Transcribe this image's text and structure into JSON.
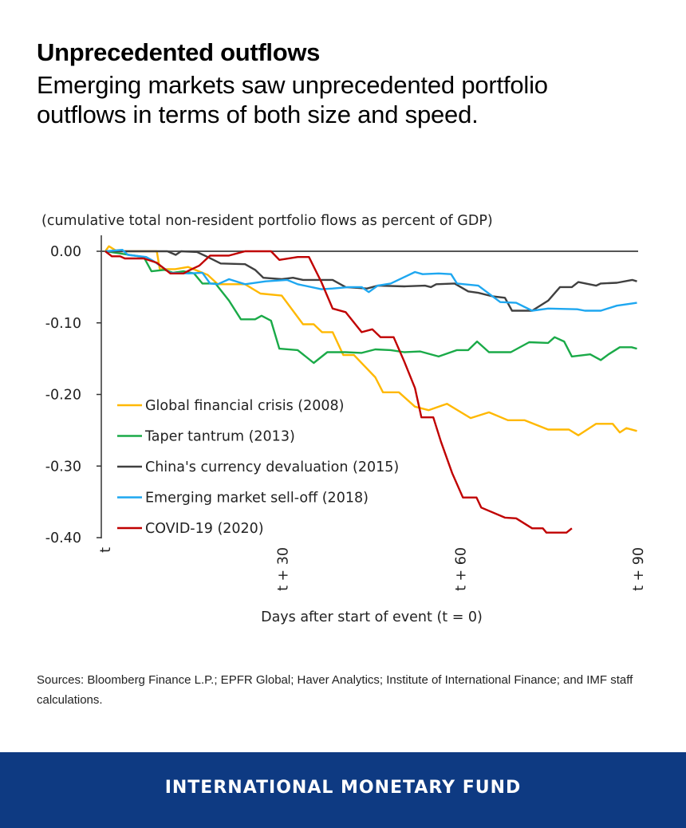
{
  "header": {
    "title": "Unprecedented outflows",
    "subtitle": "Emerging markets saw unprecedented portfolio outflows in terms of both size and speed."
  },
  "chart_data": {
    "type": "line",
    "unit_note": "(cumulative total non-resident portfolio flows as percent of GDP)",
    "xlabel": "Days after start of event (t = 0)",
    "ylabel": "",
    "xlim": [
      0,
      90
    ],
    "ylim": [
      -0.4,
      0.0
    ],
    "x_ticks": [
      {
        "value": 0,
        "label": "t"
      },
      {
        "value": 30,
        "label": "t + 30"
      },
      {
        "value": 60,
        "label": "t + 60"
      },
      {
        "value": 90,
        "label": "t + 90"
      }
    ],
    "y_ticks": [
      {
        "value": 0,
        "label": "0.00"
      },
      {
        "value": -0.1,
        "label": "-0.10"
      },
      {
        "value": -0.2,
        "label": "-0.20"
      },
      {
        "value": -0.3,
        "label": "-0.30"
      },
      {
        "value": -0.4,
        "label": "-0.40"
      }
    ],
    "grid": false,
    "legend_position": "bottom-left",
    "series": [
      {
        "name": "Global financial crisis (2008)",
        "color": "#ffb800",
        "points": [
          [
            0,
            0
          ],
          [
            0.6,
            0.007
          ],
          [
            2,
            0
          ],
          [
            8.7,
            0
          ],
          [
            9.2,
            -0.025
          ],
          [
            11.8,
            -0.025
          ],
          [
            14,
            -0.022
          ],
          [
            17.3,
            -0.033
          ],
          [
            19,
            -0.046
          ],
          [
            23.6,
            -0.046
          ],
          [
            26.2,
            -0.059
          ],
          [
            29.8,
            -0.062
          ],
          [
            33.4,
            -0.102
          ],
          [
            35.2,
            -0.102
          ],
          [
            36.6,
            -0.113
          ],
          [
            38.4,
            -0.113
          ],
          [
            40.2,
            -0.145
          ],
          [
            42,
            -0.145
          ],
          [
            45.6,
            -0.176
          ],
          [
            46.9,
            -0.197
          ],
          [
            49.6,
            -0.197
          ],
          [
            52.3,
            -0.217
          ],
          [
            54.6,
            -0.222
          ],
          [
            57.7,
            -0.213
          ],
          [
            61.7,
            -0.233
          ],
          [
            64.8,
            -0.225
          ],
          [
            68,
            -0.236
          ],
          [
            70.8,
            -0.236
          ],
          [
            74.8,
            -0.249
          ],
          [
            78.3,
            -0.249
          ],
          [
            79.9,
            -0.257
          ],
          [
            82.9,
            -0.241
          ],
          [
            85.7,
            -0.241
          ],
          [
            86.9,
            -0.253
          ],
          [
            88,
            -0.247
          ],
          [
            89.8,
            -0.251
          ]
        ]
      },
      {
        "name": "Taper tantrum (2013)",
        "color": "#1aaa48",
        "points": [
          [
            0,
            0
          ],
          [
            6.5,
            -0.008
          ],
          [
            7.8,
            -0.028
          ],
          [
            10,
            -0.026
          ],
          [
            11.4,
            -0.03
          ],
          [
            13.2,
            -0.028
          ],
          [
            15,
            -0.031
          ],
          [
            16.4,
            -0.045
          ],
          [
            18.6,
            -0.045
          ],
          [
            20.9,
            -0.069
          ],
          [
            22.9,
            -0.095
          ],
          [
            25.3,
            -0.095
          ],
          [
            26.4,
            -0.09
          ],
          [
            28,
            -0.097
          ],
          [
            29.4,
            -0.136
          ],
          [
            32.5,
            -0.138
          ],
          [
            35.2,
            -0.156
          ],
          [
            37.5,
            -0.141
          ],
          [
            40.6,
            -0.141
          ],
          [
            43.3,
            -0.142
          ],
          [
            45.6,
            -0.137
          ],
          [
            48.2,
            -0.138
          ],
          [
            50.5,
            -0.141
          ],
          [
            53.2,
            -0.14
          ],
          [
            56.3,
            -0.147
          ],
          [
            59.4,
            -0.138
          ],
          [
            61.3,
            -0.138
          ],
          [
            62.8,
            -0.126
          ],
          [
            64.8,
            -0.141
          ],
          [
            68.5,
            -0.141
          ],
          [
            71.6,
            -0.127
          ],
          [
            74.8,
            -0.128
          ],
          [
            75.9,
            -0.12
          ],
          [
            77.5,
            -0.126
          ],
          [
            78.8,
            -0.147
          ],
          [
            81.9,
            -0.144
          ],
          [
            83.7,
            -0.152
          ],
          [
            85,
            -0.144
          ],
          [
            86.9,
            -0.134
          ],
          [
            88.9,
            -0.134
          ],
          [
            89.8,
            -0.136
          ]
        ]
      },
      {
        "name": "China's currency devaluation (2015)",
        "color": "#404040",
        "points": [
          [
            0,
            0
          ],
          [
            9.6,
            0
          ],
          [
            10.5,
            0
          ],
          [
            11.9,
            -0.005
          ],
          [
            12.8,
            0
          ],
          [
            15.5,
            -0.001
          ],
          [
            17.3,
            -0.008
          ],
          [
            19.5,
            -0.017
          ],
          [
            23.6,
            -0.018
          ],
          [
            25.3,
            -0.026
          ],
          [
            26.7,
            -0.037
          ],
          [
            29.8,
            -0.039
          ],
          [
            31.7,
            -0.037
          ],
          [
            33.4,
            -0.04
          ],
          [
            38.4,
            -0.04
          ],
          [
            40.6,
            -0.05
          ],
          [
            44.2,
            -0.052
          ],
          [
            46,
            -0.048
          ],
          [
            50.5,
            -0.049
          ],
          [
            54,
            -0.048
          ],
          [
            55,
            -0.05
          ],
          [
            55.9,
            -0.046
          ],
          [
            59,
            -0.045
          ],
          [
            61.3,
            -0.056
          ],
          [
            63,
            -0.058
          ],
          [
            65.4,
            -0.063
          ],
          [
            67.5,
            -0.065
          ],
          [
            68.7,
            -0.083
          ],
          [
            72.1,
            -0.083
          ],
          [
            74.8,
            -0.069
          ],
          [
            76.8,
            -0.05
          ],
          [
            78.8,
            -0.05
          ],
          [
            79.9,
            -0.043
          ],
          [
            82.9,
            -0.048
          ],
          [
            83.7,
            -0.045
          ],
          [
            86.4,
            -0.044
          ],
          [
            89,
            -0.04
          ],
          [
            89.8,
            -0.042
          ]
        ]
      },
      {
        "name": "Emerging market sell-off (2018)",
        "color": "#1ea7f0",
        "points": [
          [
            0,
            0
          ],
          [
            2.9,
            0.002
          ],
          [
            3.8,
            -0.005
          ],
          [
            6.9,
            -0.008
          ],
          [
            8.2,
            -0.014
          ],
          [
            11,
            -0.03
          ],
          [
            14.1,
            -0.031
          ],
          [
            16.4,
            -0.03
          ],
          [
            17.7,
            -0.045
          ],
          [
            19,
            -0.046
          ],
          [
            20.9,
            -0.039
          ],
          [
            23.6,
            -0.046
          ],
          [
            27.1,
            -0.042
          ],
          [
            30.7,
            -0.04
          ],
          [
            32.5,
            -0.046
          ],
          [
            36.5,
            -0.053
          ],
          [
            38.4,
            -0.052
          ],
          [
            41.1,
            -0.05
          ],
          [
            43.3,
            -0.05
          ],
          [
            44.5,
            -0.057
          ],
          [
            46,
            -0.048
          ],
          [
            48.2,
            -0.045
          ],
          [
            52.3,
            -0.029
          ],
          [
            53.6,
            -0.032
          ],
          [
            56.3,
            -0.031
          ],
          [
            58.4,
            -0.032
          ],
          [
            59.4,
            -0.045
          ],
          [
            63,
            -0.048
          ],
          [
            66.7,
            -0.071
          ],
          [
            69.4,
            -0.072
          ],
          [
            72.1,
            -0.083
          ],
          [
            74.8,
            -0.08
          ],
          [
            79.7,
            -0.081
          ],
          [
            81,
            -0.083
          ],
          [
            83.7,
            -0.083
          ],
          [
            86.4,
            -0.076
          ],
          [
            89.8,
            -0.072
          ]
        ]
      },
      {
        "name": "COVID-19 (2020)",
        "color": "#c00000",
        "points": [
          [
            0,
            0
          ],
          [
            1.1,
            -0.007
          ],
          [
            2.5,
            -0.007
          ],
          [
            3.3,
            -0.01
          ],
          [
            6.5,
            -0.01
          ],
          [
            8.7,
            -0.016
          ],
          [
            11,
            -0.031
          ],
          [
            13.2,
            -0.031
          ],
          [
            14.1,
            -0.027
          ],
          [
            15.9,
            -0.02
          ],
          [
            17.7,
            -0.006
          ],
          [
            20.9,
            -0.006
          ],
          [
            23.6,
            0
          ],
          [
            28,
            0
          ],
          [
            29.4,
            -0.012
          ],
          [
            32.5,
            -0.008
          ],
          [
            34.4,
            -0.008
          ],
          [
            36.5,
            -0.043
          ],
          [
            38.4,
            -0.08
          ],
          [
            40.6,
            -0.085
          ],
          [
            43.3,
            -0.113
          ],
          [
            45.1,
            -0.109
          ],
          [
            46.5,
            -0.12
          ],
          [
            48.7,
            -0.12
          ],
          [
            50.5,
            -0.154
          ],
          [
            52.3,
            -0.191
          ],
          [
            53.4,
            -0.232
          ],
          [
            55.4,
            -0.232
          ],
          [
            56.7,
            -0.266
          ],
          [
            58.6,
            -0.31
          ],
          [
            60.4,
            -0.344
          ],
          [
            62.7,
            -0.344
          ],
          [
            63.5,
            -0.358
          ],
          [
            67.5,
            -0.372
          ],
          [
            69.4,
            -0.373
          ],
          [
            72.1,
            -0.387
          ],
          [
            73.9,
            -0.387
          ],
          [
            74.5,
            -0.393
          ],
          [
            77.9,
            -0.393
          ],
          [
            78.8,
            -0.387
          ]
        ]
      }
    ]
  },
  "sources": "Sources: Bloomberg Finance L.P.;  EPFR Global; Haver Analytics; Institute of International Finance; and IMF staff calculations.",
  "footer": {
    "brand": "INTERNATIONAL MONETARY FUND"
  }
}
